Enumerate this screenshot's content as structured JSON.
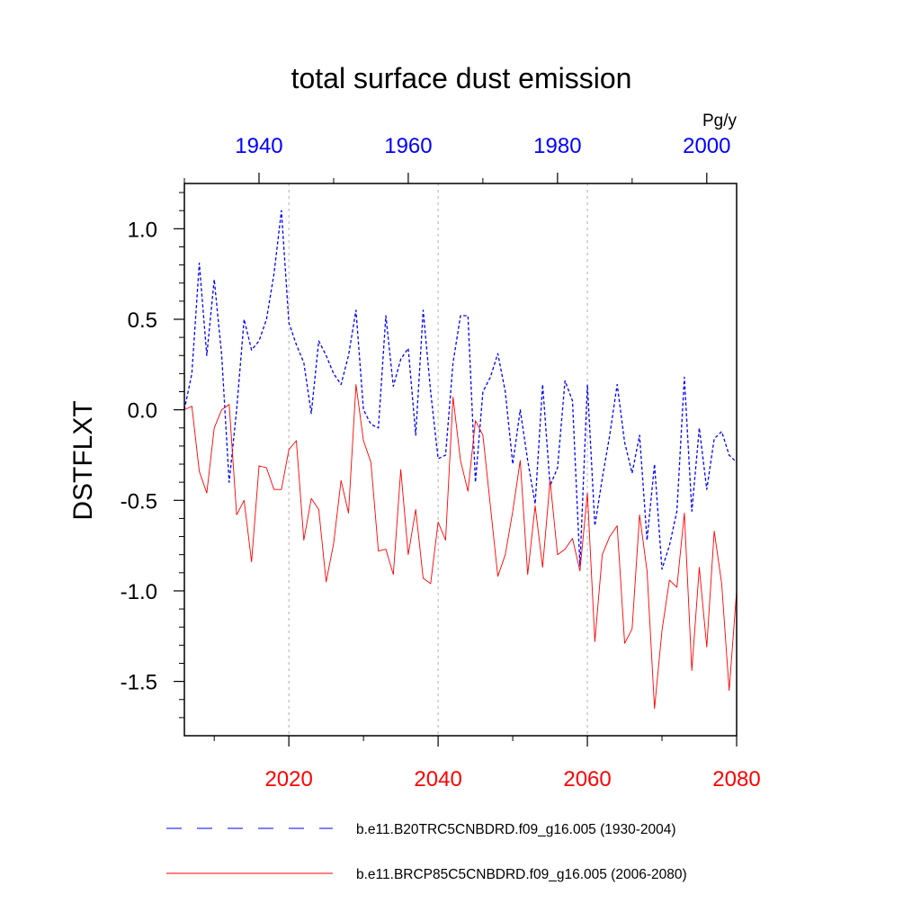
{
  "chart_data": {
    "type": "line",
    "title": "total surface dust emission",
    "ylabel": "DSTFLXT",
    "units": "Pg/y",
    "ylim": [
      -1.8,
      1.25
    ],
    "yticks": [
      1.0,
      0.5,
      0.0,
      -0.5,
      -1.0,
      -1.5
    ],
    "ytick_labels": [
      "1.0",
      "0.5",
      "0.0",
      "-0.5",
      "-1.0",
      "-1.5"
    ],
    "bottom_axis": {
      "range": [
        2006,
        2080
      ],
      "ticks": [
        2020,
        2040,
        2060,
        2080
      ],
      "tick_labels": [
        "2020",
        "2040",
        "2060",
        "2080"
      ],
      "color": "#ff0000"
    },
    "top_axis": {
      "range": [
        1930,
        2004
      ],
      "ticks": [
        1940,
        1960,
        1980,
        2000
      ],
      "tick_labels": [
        "1940",
        "1960",
        "1980",
        "2000"
      ],
      "color": "#0000ff"
    },
    "gridlines_x": [
      2020,
      2040,
      2060
    ],
    "series": [
      {
        "name": "b.e11.B20TRC5CNBDRD.f09_g16.005 (1930-2004)",
        "axis": "top",
        "style": "dashed",
        "color": "#0000ff",
        "x_start": 1930,
        "values": [
          0.0,
          0.2,
          0.81,
          0.3,
          0.72,
          0.3,
          -0.4,
          0.0,
          0.5,
          0.33,
          0.38,
          0.5,
          0.75,
          1.1,
          0.48,
          0.36,
          0.26,
          -0.02,
          0.38,
          0.3,
          0.2,
          0.14,
          0.3,
          0.55,
          0.0,
          -0.08,
          -0.1,
          0.52,
          0.13,
          0.28,
          0.34,
          -0.14,
          0.55,
          0.1,
          -0.27,
          -0.25,
          0.26,
          0.52,
          0.52,
          -0.4,
          0.1,
          0.18,
          0.31,
          0.1,
          -0.3,
          0.0,
          -0.28,
          -0.52,
          0.14,
          -0.42,
          -0.32,
          0.16,
          0.05,
          -0.86,
          0.14,
          -0.64,
          -0.38,
          -0.14,
          0.14,
          -0.18,
          -0.35,
          -0.14,
          -0.72,
          -0.3,
          -0.88,
          -0.75,
          -0.56,
          0.18,
          -0.56,
          -0.1,
          -0.44,
          -0.16,
          -0.12,
          -0.25,
          -0.29
        ]
      },
      {
        "name": "b.e11.BRCP85C5CNBDRD.f09_g16.005 (2006-2080)",
        "axis": "bottom",
        "style": "solid",
        "color": "#ff0000",
        "x_start": 2006,
        "values": [
          0.0,
          0.02,
          -0.34,
          -0.46,
          -0.1,
          0.0,
          0.03,
          -0.58,
          -0.5,
          -0.84,
          -0.31,
          -0.32,
          -0.44,
          -0.44,
          -0.22,
          -0.17,
          -0.72,
          -0.49,
          -0.55,
          -0.95,
          -0.74,
          -0.39,
          -0.57,
          0.14,
          -0.17,
          -0.29,
          -0.78,
          -0.77,
          -0.91,
          -0.33,
          -0.8,
          -0.55,
          -0.93,
          -0.96,
          -0.62,
          -0.72,
          0.07,
          -0.28,
          -0.45,
          -0.06,
          -0.14,
          -0.53,
          -0.92,
          -0.8,
          -0.56,
          -0.28,
          -0.91,
          -0.53,
          -0.87,
          -0.39,
          -0.8,
          -0.77,
          -0.71,
          -0.89,
          -0.46,
          -1.28,
          -0.8,
          -0.7,
          -0.64,
          -1.29,
          -1.21,
          -0.58,
          -0.89,
          -1.65,
          -1.22,
          -0.94,
          -0.98,
          -0.57,
          -1.44,
          -0.87,
          -1.31,
          -0.67,
          -0.96,
          -1.55,
          -1.0
        ]
      }
    ]
  }
}
